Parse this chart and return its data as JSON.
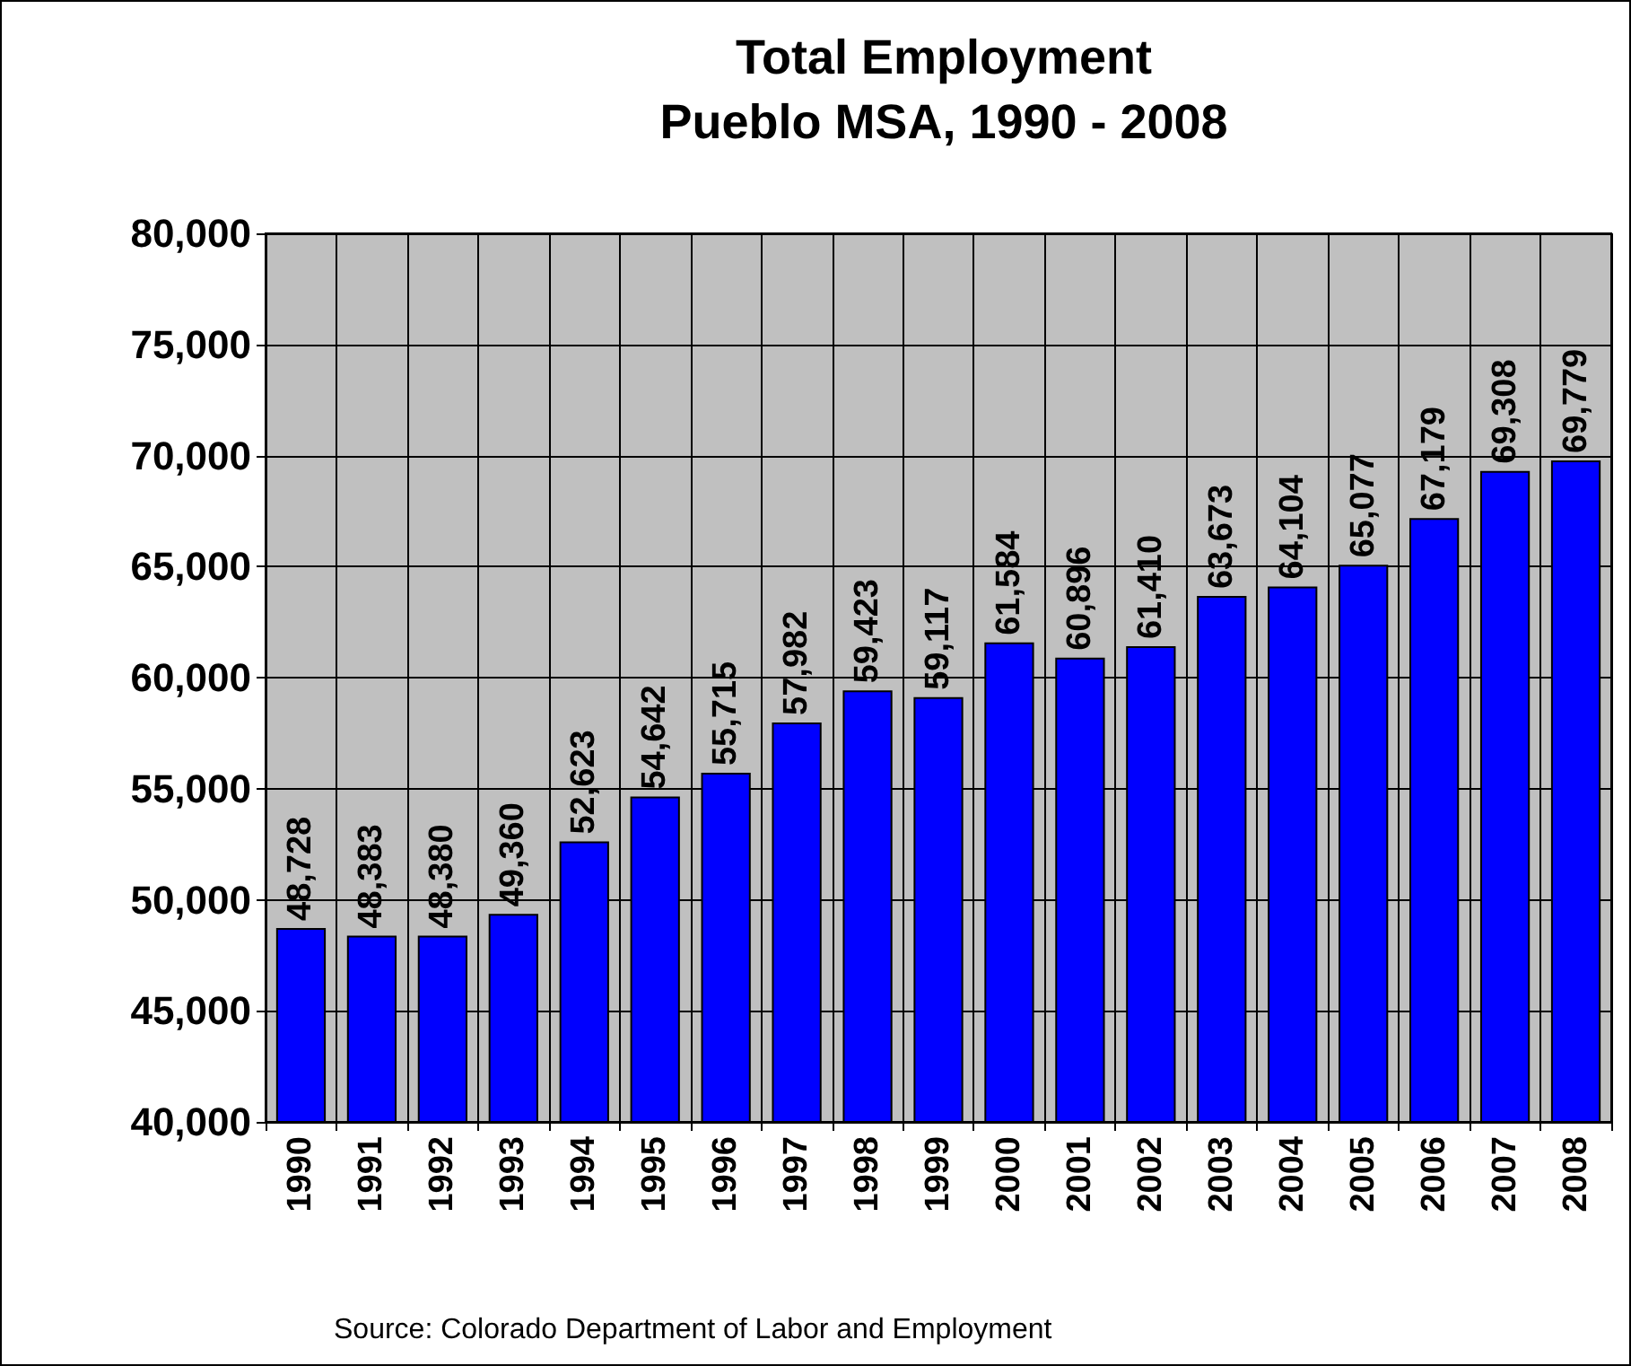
{
  "chart_data": {
    "type": "bar",
    "title": "Total Employment\nPueblo MSA, 1990 - 2008",
    "categories": [
      "1990",
      "1991",
      "1992",
      "1993",
      "1994",
      "1995",
      "1996",
      "1997",
      "1998",
      "1999",
      "2000",
      "2001",
      "2002",
      "2003",
      "2004",
      "2005",
      "2006",
      "2007",
      "2008"
    ],
    "values": [
      48728,
      48383,
      48380,
      49360,
      52623,
      54642,
      55715,
      57982,
      59423,
      59117,
      61584,
      60896,
      61410,
      63673,
      64104,
      65077,
      67179,
      69308,
      69779
    ],
    "color": "#0000ff",
    "value_labels": [
      "48,728",
      "48,383",
      "48,380",
      "49,360",
      "52,623",
      "54,642",
      "55,715",
      "57,982",
      "59,423",
      "59,117",
      "61,584",
      "60,896",
      "61,410",
      "63,673",
      "64,104",
      "65,077",
      "67,179",
      "69,308",
      "69,779"
    ],
    "ylim": [
      40000,
      80000
    ],
    "yticks": [
      {
        "value": 40000,
        "label": "40,000"
      },
      {
        "value": 45000,
        "label": "45,000"
      },
      {
        "value": 50000,
        "label": "50,000"
      },
      {
        "value": 55000,
        "label": "55,000"
      },
      {
        "value": 60000,
        "label": "60,000"
      },
      {
        "value": 65000,
        "label": "65,000"
      },
      {
        "value": 70000,
        "label": "70,000"
      },
      {
        "value": 75000,
        "label": "75,000"
      },
      {
        "value": 80000,
        "label": "80,000"
      }
    ],
    "grid": true,
    "annotations": [
      "Source: Colorado Department of Labor and Employment"
    ]
  }
}
